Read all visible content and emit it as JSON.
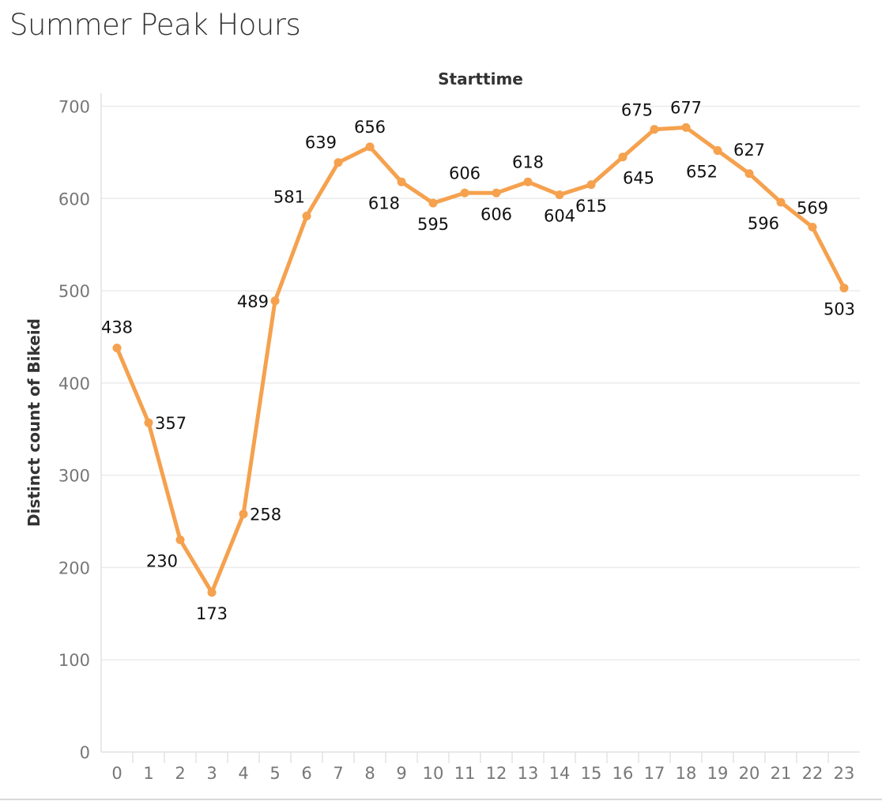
{
  "title": "Summer Peak Hours",
  "chart_data": {
    "type": "line",
    "title": "Summer Peak Hours",
    "xlabel": "Starttime",
    "ylabel": "Distinct count of Bikeid",
    "x": [
      0,
      1,
      2,
      3,
      4,
      5,
      6,
      7,
      8,
      9,
      10,
      11,
      12,
      13,
      14,
      15,
      16,
      17,
      18,
      19,
      20,
      21,
      22,
      23
    ],
    "x_tick_labels": [
      "0",
      "1",
      "2",
      "3",
      "4",
      "5",
      "6",
      "7",
      "8",
      "9",
      "10",
      "11",
      "12",
      "13",
      "14",
      "15",
      "16",
      "17",
      "18",
      "19",
      "20",
      "21",
      "22",
      "23"
    ],
    "y_ticks": [
      0,
      100,
      200,
      300,
      400,
      500,
      600,
      700
    ],
    "y_tick_labels": [
      "0",
      "100",
      "200",
      "300",
      "400",
      "500",
      "600",
      "700"
    ],
    "ylim": [
      0,
      700
    ],
    "grid": true,
    "series": [
      {
        "color": "#f5a14e",
        "values": [
          438,
          357,
          230,
          173,
          258,
          489,
          581,
          639,
          656,
          618,
          595,
          606,
          606,
          618,
          604,
          615,
          645,
          675,
          677,
          652,
          627,
          596,
          569,
          503
        ],
        "labels": [
          "438",
          "357",
          "230",
          "173",
          "258",
          "489",
          "581",
          "639",
          "656",
          "618",
          "595",
          "606",
          "606",
          "618",
          "604",
          "615",
          "645",
          "675",
          "677",
          "652",
          "627",
          "596",
          "569",
          "503"
        ]
      }
    ]
  }
}
